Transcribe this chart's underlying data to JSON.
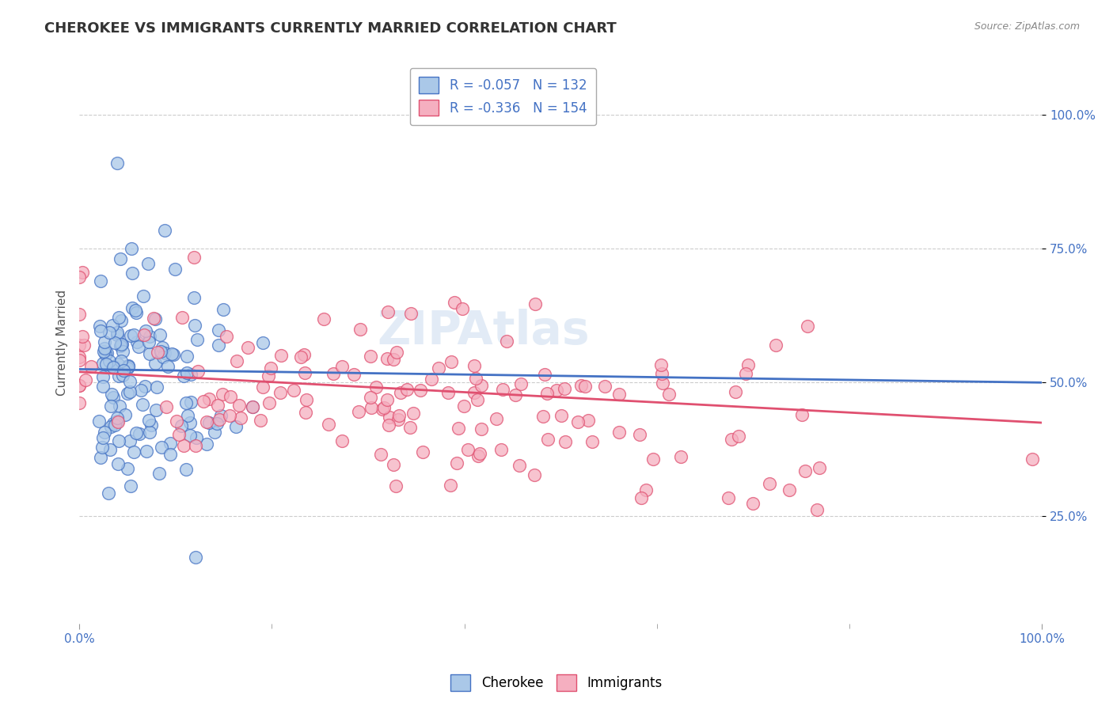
{
  "title": "CHEROKEE VS IMMIGRANTS CURRENTLY MARRIED CORRELATION CHART",
  "source": "Source: ZipAtlas.com",
  "ylabel": "Currently Married",
  "ytick_labels": [
    "100.0%",
    "75.0%",
    "50.0%",
    "25.0%"
  ],
  "ytick_values": [
    1.0,
    0.75,
    0.5,
    0.25
  ],
  "xtick_values": [
    0.0,
    1.0
  ],
  "xtick_labels": [
    "0.0%",
    "100.0%"
  ],
  "legend_labels": [
    "Cherokee",
    "Immigrants"
  ],
  "legend_R": [
    -0.057,
    -0.336
  ],
  "legend_N": [
    132,
    154
  ],
  "cherokee_color": "#aac8e8",
  "immigrants_color": "#f5afc0",
  "cherokee_line_color": "#4472c4",
  "immigrants_line_color": "#e05070",
  "background_color": "#ffffff",
  "grid_color": "#cccccc",
  "title_fontsize": 13,
  "axis_label_fontsize": 11,
  "tick_fontsize": 11,
  "legend_fontsize": 12,
  "watermark": "ZIPAtlas",
  "seed_cherokee": 42,
  "seed_immigrants": 77,
  "cherokee_R": -0.057,
  "cherokee_N": 132,
  "immigrants_R": -0.336,
  "immigrants_N": 154,
  "ylim_min": 0.05,
  "ylim_max": 1.1
}
